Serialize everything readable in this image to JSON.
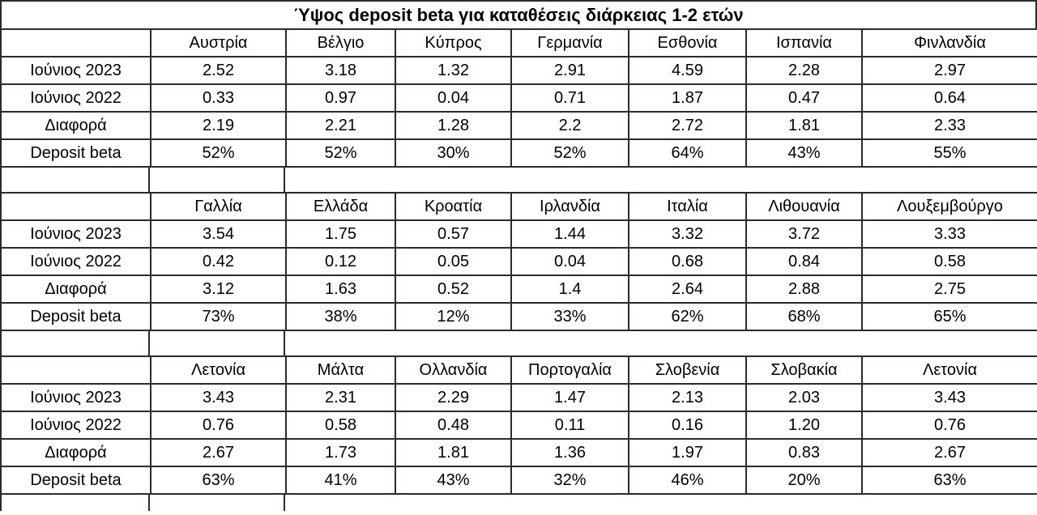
{
  "chart_data": {
    "type": "table",
    "title": "Ύψος deposit beta για καταθέσεις διάρκειας 1-2 ετών",
    "row_labels": [
      "Ιούνιος 2023",
      "Ιούνιος 2022",
      "Διαφορά",
      "Deposit beta"
    ],
    "tables": [
      {
        "columns": [
          "Αυστρία",
          "Βέλγιο",
          "Κύπρος",
          "Γερμανία",
          "Εσθονία",
          "Ισπανία",
          "Φινλανδία"
        ],
        "rows": [
          {
            "label": "Ιούνιος 2023",
            "values": [
              "2.52",
              "3.18",
              "1.32",
              "2.91",
              "4.59",
              "2.28",
              "2.97"
            ]
          },
          {
            "label": "Ιούνιος 2022",
            "values": [
              "0.33",
              "0.97",
              "0.04",
              "0.71",
              "1.87",
              "0.47",
              "0.64"
            ]
          },
          {
            "label": "Διαφορά",
            "values": [
              "2.19",
              "2.21",
              "1.28",
              "2.2",
              "2.72",
              "1.81",
              "2.33"
            ]
          },
          {
            "label": "Deposit beta",
            "values": [
              "52%",
              "52%",
              "30%",
              "52%",
              "64%",
              "43%",
              "55%"
            ]
          }
        ]
      },
      {
        "columns": [
          "Γαλλία",
          "Ελλάδα",
          "Κροατία",
          "Ιρλανδία",
          "Ιταλία",
          "Λιθουανία",
          "Λουξεμβούργο"
        ],
        "highlight_col_index": 1,
        "rows": [
          {
            "label": "Ιούνιος 2023",
            "values": [
              "3.54",
              "1.75",
              "0.57",
              "1.44",
              "3.32",
              "3.72",
              "3.33"
            ]
          },
          {
            "label": "Ιούνιος 2022",
            "values": [
              "0.42",
              "0.12",
              "0.05",
              "0.04",
              "0.68",
              "0.84",
              "0.58"
            ]
          },
          {
            "label": "Διαφορά",
            "values": [
              "3.12",
              "1.63",
              "0.52",
              "1.4",
              "2.64",
              "2.88",
              "2.75"
            ]
          },
          {
            "label": "Deposit beta",
            "values": [
              "73%",
              "38%",
              "12%",
              "33%",
              "62%",
              "68%",
              "65%"
            ]
          }
        ]
      },
      {
        "columns": [
          "Λετονία",
          "Μάλτα",
          "Ολλανδία",
          "Πορτογαλία",
          "Σλοβενία",
          "Σλοβακία",
          "Λετονία"
        ],
        "rows": [
          {
            "label": "Ιούνιος 2023",
            "values": [
              "3.43",
              "2.31",
              "2.29",
              "1.47",
              "2.13",
              "2.03",
              "3.43"
            ]
          },
          {
            "label": "Ιούνιος 2022",
            "values": [
              "0.76",
              "0.58",
              "0.48",
              "0.11",
              "0.16",
              "1.20",
              "0.76"
            ]
          },
          {
            "label": "Διαφορά",
            "values": [
              "2.67",
              "1.73",
              "1.81",
              "1.36",
              "1.97",
              "0.83",
              "2.67"
            ]
          },
          {
            "label": "Deposit beta",
            "values": [
              "63%",
              "41%",
              "43%",
              "32%",
              "46%",
              "20%",
              "63%"
            ]
          }
        ]
      }
    ]
  },
  "colors": {
    "header_row_bg": "#dfe8d2",
    "deposit_beta_row_bg": "#76b82c",
    "greece_highlight_bg": "#dae6c3",
    "greece_beta_cell_bg": "#d6e4bb",
    "grid_line": "#2b2b2b",
    "background": "#ffffff",
    "text": "#000000"
  }
}
